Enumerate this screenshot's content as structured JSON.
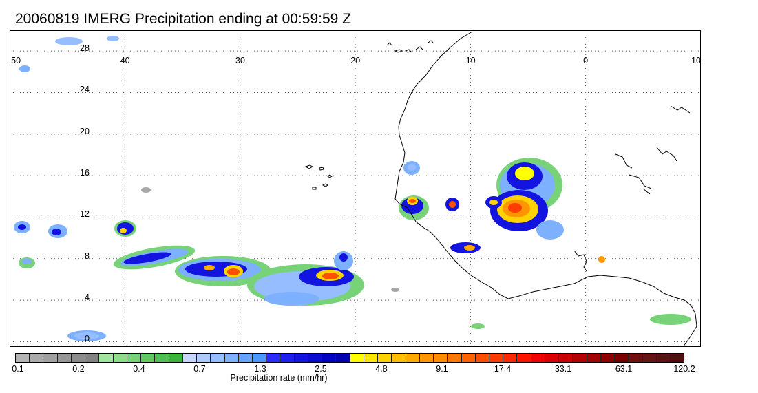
{
  "title": "20060819 IMERG Precipitation ending at 00:59:59 Z",
  "map": {
    "lon_range": [
      -50,
      10
    ],
    "lat_range": [
      -0.5,
      30
    ],
    "lon_ticks": [
      "-50",
      "-40",
      "-30",
      "-20",
      "-10",
      "0",
      "10"
    ],
    "lat_ticks": [
      "0",
      "4",
      "8",
      "12",
      "16",
      "20",
      "24",
      "28"
    ],
    "grid_style": "dotted",
    "coastline_color": "#000000"
  },
  "colorbar": {
    "title": "Precipitation rate (mm/hr)",
    "tick_labels": [
      "0.1",
      "0.2",
      "0.4",
      "0.7",
      "1.3",
      "2.5",
      "4.8",
      "9.1",
      "17.4",
      "33.1",
      "63.1",
      "120.2"
    ],
    "colors": [
      "#b4b4b4",
      "#aaaaaa",
      "#a0a0a0",
      "#969696",
      "#8c8c8c",
      "#828282",
      "#a0e6a0",
      "#8cdc8c",
      "#78d278",
      "#64c864",
      "#50be50",
      "#3cb43c",
      "#c8d7ff",
      "#afcaff",
      "#96bdff",
      "#7db0ff",
      "#64a3ff",
      "#4b96ff",
      "#2c2cff",
      "#1e1ef0",
      "#1414e0",
      "#0a0ad0",
      "#0000c0",
      "#0000b0",
      "#ffff00",
      "#ffe600",
      "#ffd200",
      "#ffbe00",
      "#ffaa00",
      "#ff9600",
      "#ff8c00",
      "#ff7800",
      "#ff6400",
      "#ff5000",
      "#ff3c00",
      "#ff2800",
      "#ff1400",
      "#f00000",
      "#dc0000",
      "#c80000",
      "#b40000",
      "#a00000",
      "#8c0000",
      "#780000",
      "#6e1010",
      "#641414",
      "#5a1414",
      "#501010"
    ]
  },
  "rain_legend_colors": {
    "trace": "#a8a8a8",
    "light": "#78d278",
    "pale_blue": "#7db0ff",
    "blue": "#2c2cff",
    "dark_blue": "#0000c0",
    "yellow": "#ffff00",
    "orange": "#ff9600",
    "red": "#ff3c00"
  }
}
